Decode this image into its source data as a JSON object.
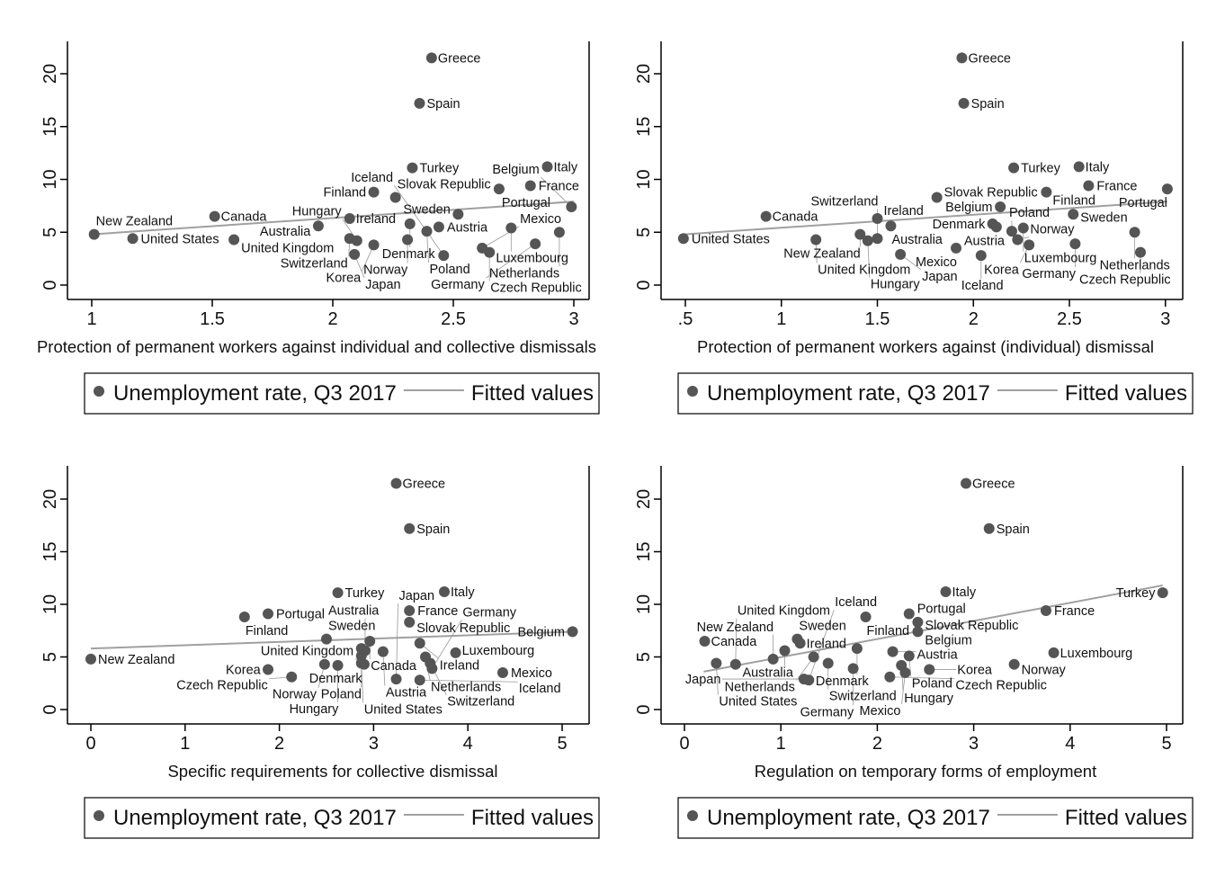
{
  "chart_data": [
    {
      "type": "scatter",
      "panel": 0,
      "xlabel": "Protection of permanent workers against individual and collective dismissals",
      "ylabel": "",
      "xticks": [
        "1",
        "1.5",
        "2",
        "2.5",
        "3"
      ],
      "xtick_values": [
        1,
        1.5,
        2,
        2.5,
        3
      ],
      "yticks": [
        "0",
        "5",
        "10",
        "15",
        "20"
      ],
      "ytick_values": [
        0,
        5,
        10,
        15,
        20
      ],
      "xlim": [
        0.9,
        3.07
      ],
      "ylim": [
        -1.3,
        23
      ],
      "fit": [
        [
          1,
          4.8
        ],
        [
          3,
          7.9
        ]
      ]
    },
    {
      "type": "scatter",
      "panel": 1,
      "xlabel": "Protection of permanent workers against (individual) dismissal",
      "ylabel": "",
      "xticks": [
        ".5",
        "1",
        "1.5",
        "2",
        "2.5",
        "3"
      ],
      "xtick_values": [
        0.5,
        1,
        1.5,
        2,
        2.5,
        3
      ],
      "yticks": [
        "0",
        "5",
        "10",
        "15",
        "20"
      ],
      "ytick_values": [
        0,
        5,
        10,
        15,
        20
      ],
      "xlim": [
        0.37,
        3.09
      ],
      "ylim": [
        -1.3,
        23
      ],
      "fit": [
        [
          0.49,
          4.8
        ],
        [
          3.01,
          7.9
        ]
      ]
    },
    {
      "type": "scatter",
      "panel": 2,
      "xlabel": "Specific requirements for collective dismissal",
      "ylabel": "",
      "xticks": [
        "0",
        "1",
        "2",
        "3",
        "4",
        "5"
      ],
      "xtick_values": [
        0,
        1,
        2,
        3,
        4,
        5
      ],
      "yticks": [
        "0",
        "5",
        "10",
        "15",
        "20"
      ],
      "ytick_values": [
        0,
        5,
        10,
        15,
        20
      ],
      "xlim": [
        -0.25,
        5.28
      ],
      "ylim": [
        -1.3,
        23
      ],
      "fit": [
        [
          0,
          5.8
        ],
        [
          5.11,
          7.4
        ]
      ]
    },
    {
      "type": "scatter",
      "panel": 3,
      "xlabel": "Regulation on temporary forms of employment",
      "ylabel": "",
      "xticks": [
        "0",
        "1",
        "2",
        "3",
        "4",
        "5"
      ],
      "xtick_values": [
        0,
        1,
        2,
        3,
        4,
        5
      ],
      "yticks": [
        "0",
        "5",
        "10",
        "15",
        "20"
      ],
      "ytick_values": [
        0,
        5,
        10,
        15,
        20
      ],
      "xlim": [
        -0.25,
        5.18
      ],
      "ylim": [
        -1.3,
        23
      ],
      "fit": [
        [
          0.2,
          3.6
        ],
        [
          4.96,
          11.8
        ]
      ]
    }
  ],
  "countries": [
    {
      "name": "Greece",
      "y": 21.5,
      "x": [
        2.41,
        1.94,
        3.24,
        2.92
      ]
    },
    {
      "name": "Spain",
      "y": 17.2,
      "x": [
        2.36,
        1.95,
        3.38,
        3.16
      ]
    },
    {
      "name": "Turkey",
      "y": 11.1,
      "x": [
        2.33,
        2.21,
        2.62,
        4.96
      ]
    },
    {
      "name": "Italy",
      "y": 11.2,
      "x": [
        2.89,
        2.55,
        3.75,
        2.71
      ]
    },
    {
      "name": "France",
      "y": 9.4,
      "x": [
        2.82,
        2.6,
        3.38,
        3.75
      ]
    },
    {
      "name": "Portugal",
      "y": 9.1,
      "x": [
        2.69,
        3.01,
        1.88,
        2.33
      ]
    },
    {
      "name": "Finland",
      "y": 8.8,
      "x": [
        2.17,
        2.38,
        1.63,
        1.88
      ]
    },
    {
      "name": "Slovak Republic",
      "y": 8.3,
      "x": [
        2.26,
        1.81,
        3.38,
        2.42
      ]
    },
    {
      "name": "Belgium",
      "y": 7.4,
      "x": [
        2.99,
        2.14,
        5.11,
        2.42
      ]
    },
    {
      "name": "Sweden",
      "y": 6.7,
      "x": [
        2.52,
        2.52,
        2.5,
        1.17
      ]
    },
    {
      "name": "Canada",
      "y": 6.5,
      "x": [
        1.51,
        0.92,
        2.96,
        0.21
      ]
    },
    {
      "name": "Ireland",
      "y": 6.3,
      "x": [
        2.07,
        1.5,
        3.49,
        1.2
      ]
    },
    {
      "name": "Denmark",
      "y": 5.8,
      "x": [
        2.32,
        2.1,
        2.87,
        1.79
      ]
    },
    {
      "name": "Australia",
      "y": 5.6,
      "x": [
        1.94,
        1.57,
        2.91,
        1.04
      ]
    },
    {
      "name": "Austria",
      "y": 5.5,
      "x": [
        2.44,
        2.12,
        3.1,
        2.16
      ]
    },
    {
      "name": "Luxembourg",
      "y": 5.4,
      "x": [
        2.74,
        2.26,
        3.87,
        3.83
      ]
    },
    {
      "name": "Poland",
      "y": 5.1,
      "x": [
        2.39,
        2.2,
        2.87,
        2.33
      ]
    },
    {
      "name": "Netherlands",
      "y": 5.0,
      "x": [
        2.94,
        2.84,
        3.55,
        1.34
      ]
    },
    {
      "name": "New Zealand",
      "y": 4.8,
      "x": [
        1.01,
        1.41,
        0.0,
        0.92
      ]
    },
    {
      "name": "United States",
      "y": 4.4,
      "x": [
        1.17,
        0.49,
        2.87,
        0.33
      ]
    },
    {
      "name": "United Kingdom",
      "y": 4.3,
      "x": [
        1.59,
        1.18,
        2.9,
        0.53
      ]
    },
    {
      "name": "Switzerland",
      "y": 4.4,
      "x": [
        2.07,
        1.5,
        3.6,
        1.49
      ]
    },
    {
      "name": "Norway",
      "y": 4.3,
      "x": [
        2.31,
        2.23,
        2.48,
        3.42
      ]
    },
    {
      "name": "Hungary",
      "y": 4.2,
      "x": [
        2.1,
        1.45,
        2.62,
        2.25
      ]
    },
    {
      "name": "Germany",
      "y": 3.9,
      "x": [
        2.84,
        2.53,
        3.62,
        1.75
      ]
    },
    {
      "name": "Korea",
      "y": 3.8,
      "x": [
        2.17,
        2.29,
        1.88,
        2.54
      ]
    },
    {
      "name": "Mexico",
      "y": 3.5,
      "x": [
        2.62,
        1.91,
        4.37,
        2.29
      ]
    },
    {
      "name": "Czech Republic",
      "y": 3.1,
      "x": [
        2.65,
        2.87,
        2.13,
        2.13
      ]
    },
    {
      "name": "Japan",
      "y": 2.9,
      "x": [
        2.09,
        1.62,
        3.24,
        1.24
      ]
    },
    {
      "name": "Iceland",
      "y": 2.8,
      "x": [
        2.46,
        2.04,
        3.49,
        1.29
      ]
    }
  ],
  "legend": {
    "scatter_label": "Unemployment rate, Q3 2017",
    "line_label": "Fitted values"
  },
  "colors": {
    "marker": "#555555",
    "fit_line": "#a0a0a0",
    "axis": "#000000"
  }
}
